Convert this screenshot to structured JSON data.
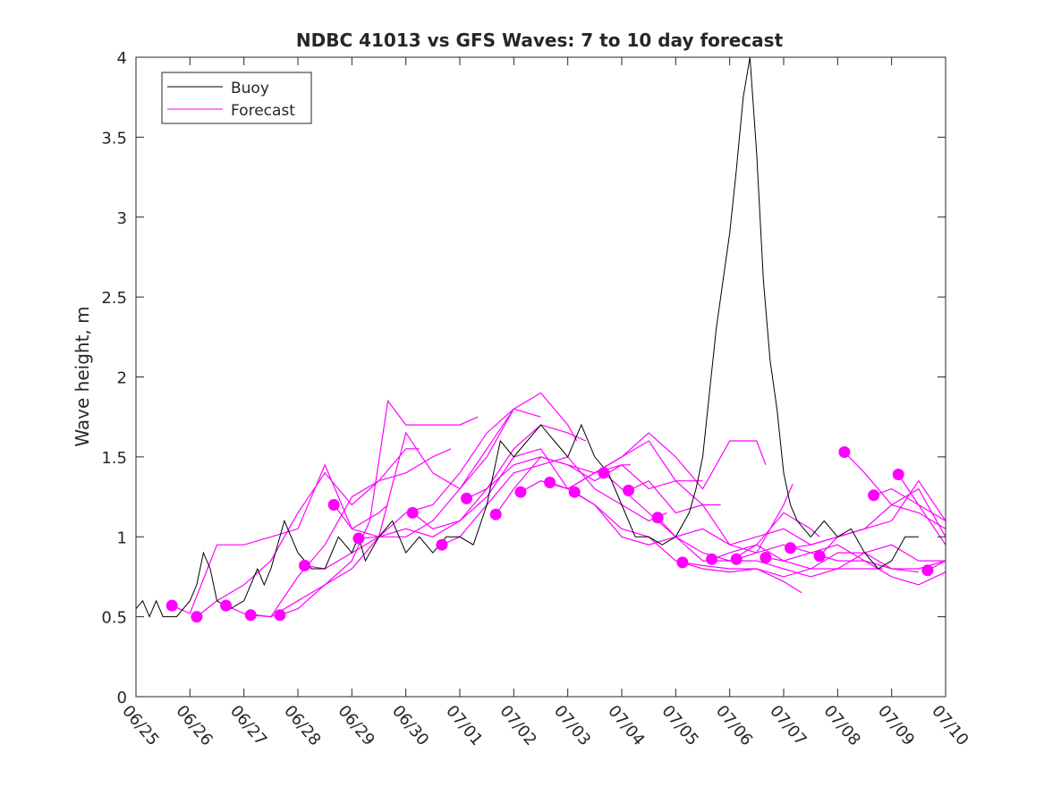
{
  "chart_data": {
    "type": "line",
    "title": "NDBC 41013 vs GFS Waves: 7 to 10 day forecast",
    "ylabel": "Wave height, m",
    "xlabel": "",
    "xlim": [
      "06/25",
      "07/10"
    ],
    "ylim": [
      0,
      4
    ],
    "xtick_labels": [
      "06/25",
      "06/26",
      "06/27",
      "06/28",
      "06/29",
      "06/30",
      "07/01",
      "07/02",
      "07/03",
      "07/04",
      "07/05",
      "07/06",
      "07/07",
      "07/08",
      "07/09",
      "07/10"
    ],
    "ytick_values": [
      0,
      0.5,
      1,
      1.5,
      2,
      2.5,
      3,
      3.5,
      4
    ],
    "ytick_labels": [
      "0",
      "0.5",
      "1",
      "1.5",
      "2",
      "2.5",
      "3",
      "3.5",
      "4"
    ],
    "grid": false,
    "legend": {
      "placement": "top-left",
      "entries": [
        "Buoy",
        "Forecast"
      ]
    },
    "colors": {
      "buoy": "#000000",
      "forecast": "#ff00ff"
    },
    "series": [
      {
        "name": "Buoy",
        "x": [
          "06/25 00:00",
          "06/25 03:00",
          "06/25 06:00",
          "06/25 09:00",
          "06/25 12:00",
          "06/25 18:00",
          "06/26 00:00",
          "06/26 03:00",
          "06/26 06:00",
          "06/26 09:00",
          "06/26 12:00",
          "06/26 18:00",
          "06/27 00:00",
          "06/27 06:00",
          "06/27 09:00",
          "06/27 12:00",
          "06/27 18:00",
          "06/28 00:00",
          "06/28 06:00",
          "06/28 12:00",
          "06/28 18:00",
          "06/29 00:00",
          "06/29 03:00",
          "06/29 06:00",
          "06/29 12:00",
          "06/29 18:00",
          "06/30 00:00",
          "06/30 06:00",
          "06/30 12:00",
          "06/30 18:00",
          "07/01 00:00",
          "07/01 06:00",
          "07/01 12:00",
          "07/01 18:00",
          "07/02 00:00",
          "07/02 06:00",
          "07/02 12:00",
          "07/02 18:00",
          "07/03 00:00",
          "07/03 06:00",
          "07/03 12:00",
          "07/03 18:00",
          "07/04 00:00",
          "07/04 06:00",
          "07/04 12:00",
          "07/04 18:00",
          "07/05 00:00",
          "07/05 06:00",
          "07/05 09:00",
          "07/05 12:00",
          "07/05 15:00",
          "07/05 18:00",
          "07/05 21:00",
          "07/06 00:00",
          "07/06 03:00",
          "07/06 06:00",
          "07/06 09:00",
          "07/06 12:00",
          "07/06 15:00",
          "07/06 18:00",
          "07/06 21:00",
          "07/07 00:00",
          "07/07 03:00",
          "07/07 06:00",
          "07/07 12:00",
          "07/07 18:00",
          "07/08 00:00",
          "07/08 06:00",
          "07/08 12:00",
          "07/08 18:00",
          "07/09 00:00",
          "07/09 06:00",
          "07/09 12:00"
        ],
        "y": [
          0.55,
          0.6,
          0.5,
          0.6,
          0.5,
          0.5,
          0.6,
          0.7,
          0.9,
          0.8,
          0.6,
          0.55,
          0.6,
          0.8,
          0.7,
          0.8,
          1.1,
          0.9,
          0.8,
          0.8,
          1.0,
          0.9,
          1.0,
          0.85,
          1.0,
          1.1,
          0.9,
          1.0,
          0.9,
          1.0,
          1.0,
          0.95,
          1.2,
          1.6,
          1.5,
          1.6,
          1.7,
          1.6,
          1.5,
          1.7,
          1.5,
          1.4,
          1.2,
          1.0,
          1.0,
          0.95,
          1.0,
          1.15,
          1.3,
          1.5,
          1.9,
          2.3,
          2.6,
          2.9,
          3.3,
          3.75,
          4.0,
          3.4,
          2.6,
          2.1,
          1.8,
          1.4,
          1.2,
          1.1,
          1.0,
          1.1,
          1.0,
          1.05,
          0.9,
          0.8,
          0.85,
          1.0,
          1.0
        ]
      },
      {
        "name": "Forecast",
        "runs": [
          {
            "x": [
              "06/25 16:00",
              "06/26 00:00",
              "06/26 12:00",
              "06/27 00:00",
              "06/27 12:00",
              "06/28 00:00",
              "06/28 12:00",
              "06/29 00:00",
              "06/29 12:00",
              "06/29 16:00"
            ],
            "y": [
              0.57,
              0.52,
              0.95,
              0.95,
              1.0,
              1.05,
              1.45,
              1.05,
              1.15,
              1.2
            ]
          },
          {
            "x": [
              "06/26 03:00",
              "06/26 12:00",
              "06/27 00:00",
              "06/27 12:00",
              "06/28 00:00",
              "06/28 12:00",
              "06/29 00:00",
              "06/29 12:00",
              "06/30 00:00",
              "06/30 06:00"
            ],
            "y": [
              0.5,
              0.6,
              0.7,
              0.85,
              1.15,
              1.4,
              1.2,
              1.35,
              1.55,
              1.55
            ]
          },
          {
            "x": [
              "06/26 16:00",
              "06/27 00:00",
              "06/27 12:00",
              "06/28 00:00",
              "06/28 12:00",
              "06/29 00:00",
              "06/29 12:00",
              "06/30 00:00",
              "06/30 12:00",
              "06/30 20:00"
            ],
            "y": [
              0.57,
              0.52,
              0.5,
              0.75,
              0.95,
              1.25,
              1.35,
              1.4,
              1.5,
              1.55
            ]
          },
          {
            "x": [
              "06/27 03:00",
              "06/27 12:00",
              "06/28 00:00",
              "06/28 12:00",
              "06/29 00:00",
              "06/29 08:00",
              "06/29 16:00",
              "06/30 00:00",
              "06/30 12:00",
              "07/01 00:00",
              "07/01 08:00"
            ],
            "y": [
              0.51,
              0.5,
              0.6,
              0.7,
              0.85,
              1.1,
              1.85,
              1.7,
              1.7,
              1.7,
              1.75
            ]
          },
          {
            "x": [
              "06/27 16:00",
              "06/28 00:00",
              "06/28 12:00",
              "06/29 00:00",
              "06/29 12:00",
              "06/30 00:00",
              "06/30 12:00",
              "07/01 00:00",
              "07/01 12:00",
              "07/02 00:00"
            ],
            "y": [
              0.51,
              0.55,
              0.7,
              0.8,
              1.0,
              1.65,
              1.4,
              1.3,
              1.5,
              1.8
            ]
          },
          {
            "x": [
              "06/28 03:00",
              "06/28 12:00",
              "06/29 00:00",
              "06/29 12:00",
              "06/30 00:00",
              "06/30 12:00",
              "07/01 00:00",
              "07/01 12:00",
              "07/02 00:00",
              "07/02 12:00"
            ],
            "y": [
              0.82,
              0.8,
              0.9,
              1.0,
              1.15,
              1.2,
              1.4,
              1.65,
              1.8,
              1.75
            ]
          },
          {
            "x": [
              "06/28 16:00",
              "06/29 00:00",
              "06/29 12:00",
              "06/30 00:00",
              "06/30 12:00",
              "07/01 00:00",
              "07/01 12:00",
              "07/02 00:00",
              "07/02 12:00",
              "07/03 00:00",
              "07/03 04:00"
            ],
            "y": [
              1.2,
              1.05,
              1.0,
              1.0,
              1.1,
              1.3,
              1.55,
              1.8,
              1.9,
              1.7,
              1.6
            ]
          },
          {
            "x": [
              "06/29 03:00",
              "06/29 12:00",
              "06/30 00:00",
              "06/30 12:00",
              "07/01 00:00",
              "07/01 12:00",
              "07/02 00:00",
              "07/02 12:00",
              "07/03 00:00",
              "07/03 08:00"
            ],
            "y": [
              0.99,
              1.0,
              1.05,
              1.0,
              1.1,
              1.3,
              1.55,
              1.7,
              1.65,
              1.6
            ]
          },
          {
            "x": [
              "06/30 03:00",
              "06/30 12:00",
              "07/01 00:00",
              "07/01 12:00",
              "07/02 00:00",
              "07/02 12:00",
              "07/03 00:00",
              "07/03 12:00",
              "07/04 00:00",
              "07/04 04:00"
            ],
            "y": [
              1.15,
              1.05,
              1.1,
              1.25,
              1.5,
              1.55,
              1.3,
              1.4,
              1.45,
              1.45
            ]
          },
          {
            "x": [
              "06/30 16:00",
              "07/01 00:00",
              "07/01 12:00",
              "07/02 00:00",
              "07/02 12:00",
              "07/03 00:00",
              "07/03 12:00",
              "07/04 00:00",
              "07/04 12:00",
              "07/04 20:00"
            ],
            "y": [
              0.95,
              1.0,
              1.2,
              1.4,
              1.45,
              1.5,
              1.3,
              1.2,
              1.1,
              1.15
            ]
          },
          {
            "x": [
              "07/01 03:00",
              "07/01 12:00",
              "07/02 00:00",
              "07/02 12:00",
              "07/03 00:00",
              "07/03 12:00",
              "07/04 00:00",
              "07/04 12:00",
              "07/05 00:00",
              "07/05 12:00"
            ],
            "y": [
              1.24,
              1.3,
              1.45,
              1.5,
              1.45,
              1.35,
              1.45,
              1.3,
              1.35,
              1.35
            ]
          },
          {
            "x": [
              "07/01 16:00",
              "07/02 00:00",
              "07/02 12:00",
              "07/03 00:00",
              "07/03 12:00",
              "07/04 00:00",
              "07/04 12:00",
              "07/05 00:00",
              "07/05 12:00",
              "07/05 20:00"
            ],
            "y": [
              1.14,
              1.3,
              1.5,
              1.45,
              1.4,
              1.5,
              1.6,
              1.35,
              1.2,
              1.2
            ]
          },
          {
            "x": [
              "07/02 03:00",
              "07/02 12:00",
              "07/03 00:00",
              "07/03 12:00",
              "07/04 00:00",
              "07/04 12:00",
              "07/05 00:00",
              "07/05 12:00",
              "07/06 00:00",
              "07/06 12:00",
              "07/06 16:00"
            ],
            "y": [
              1.28,
              1.35,
              1.3,
              1.4,
              1.5,
              1.65,
              1.5,
              1.3,
              1.6,
              1.6,
              1.45
            ]
          },
          {
            "x": [
              "07/02 16:00",
              "07/03 00:00",
              "07/03 12:00",
              "07/04 00:00",
              "07/04 12:00",
              "07/05 00:00",
              "07/05 12:00",
              "07/06 00:00",
              "07/06 12:00",
              "07/07 00:00",
              "07/07 04:00"
            ],
            "y": [
              1.34,
              1.3,
              1.2,
              1.0,
              0.95,
              1.0,
              1.05,
              0.95,
              0.9,
              1.2,
              1.33
            ]
          },
          {
            "x": [
              "07/03 03:00",
              "07/03 12:00",
              "07/04 00:00",
              "07/04 12:00",
              "07/05 00:00",
              "07/05 12:00",
              "07/06 00:00",
              "07/06 12:00",
              "07/07 00:00",
              "07/07 08:00"
            ],
            "y": [
              1.28,
              1.2,
              1.05,
              1.0,
              0.85,
              0.8,
              0.78,
              0.8,
              0.72,
              0.65
            ]
          },
          {
            "x": [
              "07/03 16:00",
              "07/04 00:00",
              "07/04 12:00",
              "07/05 00:00",
              "07/05 12:00",
              "07/06 00:00",
              "07/06 12:00",
              "07/07 00:00",
              "07/07 12:00",
              "07/07 16:00"
            ],
            "y": [
              1.4,
              1.3,
              1.15,
              1.0,
              0.85,
              0.85,
              0.95,
              1.15,
              1.05,
              1.0
            ]
          },
          {
            "x": [
              "07/04 03:00",
              "07/04 12:00",
              "07/05 00:00",
              "07/05 12:00",
              "07/06 00:00",
              "07/06 12:00",
              "07/07 00:00",
              "07/07 12:00",
              "07/08 00:00",
              "07/08 12:00"
            ],
            "y": [
              1.29,
              1.35,
              1.15,
              1.2,
              0.95,
              1.0,
              1.05,
              0.95,
              1.0,
              1.05
            ]
          },
          {
            "x": [
              "07/04 16:00",
              "07/05 00:00",
              "07/05 12:00",
              "07/06 00:00",
              "07/06 12:00",
              "07/07 00:00",
              "07/07 12:00",
              "07/08 00:00",
              "07/08 12:00",
              "07/08 20:00"
            ],
            "y": [
              1.12,
              1.0,
              0.9,
              0.85,
              0.85,
              0.8,
              0.75,
              0.8,
              0.8,
              0.8
            ]
          },
          {
            "x": [
              "07/05 03:00",
              "07/05 12:00",
              "07/06 00:00",
              "07/06 12:00",
              "07/07 00:00",
              "07/07 12:00",
              "07/08 00:00",
              "07/08 12:00",
              "07/09 00:00",
              "07/09 12:00"
            ],
            "y": [
              0.84,
              0.82,
              0.8,
              0.8,
              0.75,
              0.8,
              0.9,
              0.9,
              0.8,
              0.78
            ]
          },
          {
            "x": [
              "07/05 16:00",
              "07/06 00:00",
              "07/06 12:00",
              "07/07 00:00",
              "07/07 12:00",
              "07/08 00:00",
              "07/08 12:00",
              "07/09 00:00",
              "07/09 12:00",
              "07/10 00:00"
            ],
            "y": [
              0.86,
              0.9,
              0.95,
              0.85,
              0.8,
              0.8,
              0.9,
              0.95,
              0.85,
              0.85
            ]
          },
          {
            "x": [
              "07/06 03:00",
              "07/06 12:00",
              "07/07 00:00",
              "07/07 12:00",
              "07/08 00:00",
              "07/08 12:00",
              "07/09 00:00",
              "07/09 12:00",
              "07/10 00:00"
            ],
            "y": [
              0.86,
              0.9,
              0.95,
              0.9,
              0.85,
              0.85,
              0.8,
              0.8,
              0.85
            ]
          },
          {
            "x": [
              "07/06 16:00",
              "07/07 00:00",
              "07/07 12:00",
              "07/08 00:00",
              "07/08 12:00",
              "07/09 00:00",
              "07/09 12:00",
              "07/10 00:00"
            ],
            "y": [
              0.87,
              0.85,
              0.9,
              0.95,
              0.85,
              0.75,
              0.7,
              0.78
            ]
          },
          {
            "x": [
              "07/07 03:00",
              "07/07 12:00",
              "07/08 00:00",
              "07/08 12:00",
              "07/09 00:00",
              "07/09 12:00",
              "07/10 00:00"
            ],
            "y": [
              0.93,
              0.95,
              1.0,
              1.05,
              1.1,
              1.35,
              1.1
            ]
          },
          {
            "x": [
              "07/07 16:00",
              "07/08 00:00",
              "07/08 12:00",
              "07/09 00:00",
              "07/09 12:00",
              "07/10 00:00"
            ],
            "y": [
              0.88,
              1.0,
              1.05,
              1.2,
              1.3,
              1.0
            ]
          },
          {
            "x": [
              "07/08 03:00",
              "07/08 12:00",
              "07/09 00:00",
              "07/09 12:00",
              "07/10 00:00"
            ],
            "y": [
              1.53,
              1.4,
              1.2,
              1.15,
              1.05
            ]
          },
          {
            "x": [
              "07/08 16:00",
              "07/09 00:00",
              "07/09 12:00",
              "07/10 00:00"
            ],
            "y": [
              1.26,
              1.3,
              1.2,
              1.1
            ]
          },
          {
            "x": [
              "07/09 03:00",
              "07/09 12:00",
              "07/10 00:00"
            ],
            "y": [
              1.39,
              1.2,
              0.95
            ]
          },
          {
            "x": [
              "07/09 16:00",
              "07/10 00:00"
            ],
            "y": [
              0.79,
              0.85
            ]
          }
        ],
        "markers": {
          "x": [
            "06/25 16:00",
            "06/26 03:00",
            "06/26 16:00",
            "06/27 03:00",
            "06/27 16:00",
            "06/28 03:00",
            "06/28 16:00",
            "06/29 03:00",
            "06/30 03:00",
            "06/30 16:00",
            "07/01 03:00",
            "07/01 16:00",
            "07/02 03:00",
            "07/02 16:00",
            "07/03 03:00",
            "07/03 16:00",
            "07/04 03:00",
            "07/04 16:00",
            "07/05 03:00",
            "07/05 16:00",
            "07/06 03:00",
            "07/06 16:00",
            "07/07 03:00",
            "07/07 16:00",
            "07/08 03:00",
            "07/08 16:00",
            "07/09 03:00",
            "07/09 16:00"
          ],
          "y": [
            0.57,
            0.5,
            0.57,
            0.51,
            0.51,
            0.82,
            1.2,
            0.99,
            1.15,
            0.95,
            1.24,
            1.14,
            1.28,
            1.34,
            1.28,
            1.4,
            1.29,
            1.12,
            0.84,
            0.86,
            0.86,
            0.87,
            0.93,
            0.88,
            1.53,
            1.26,
            1.39,
            0.79
          ]
        }
      }
    ]
  }
}
